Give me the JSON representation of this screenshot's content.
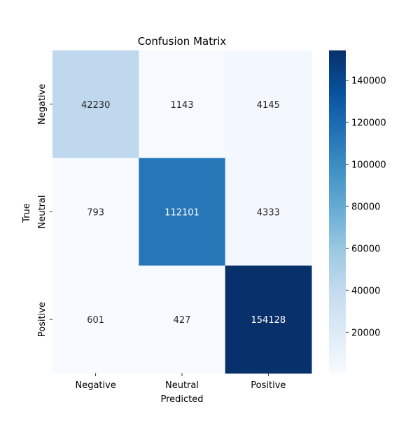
{
  "chart_data": {
    "type": "heatmap",
    "title": "Confusion Matrix",
    "xlabel": "Predicted",
    "ylabel": "True",
    "x_categories": [
      "Negative",
      "Neutral",
      "Positive"
    ],
    "y_categories": [
      "Negative",
      "Neutral",
      "Positive"
    ],
    "values": [
      [
        42230,
        1143,
        4145
      ],
      [
        793,
        112101,
        4333
      ],
      [
        601,
        427,
        154128
      ]
    ],
    "colormap": "Blues",
    "color_range": [
      427,
      154128
    ],
    "colorbar_ticks": [
      20000,
      40000,
      60000,
      80000,
      100000,
      120000,
      140000
    ],
    "colorbar_tick_labels": [
      "20000",
      "40000",
      "60000",
      "80000",
      "100000",
      "120000",
      "140000"
    ],
    "annotations": true
  }
}
